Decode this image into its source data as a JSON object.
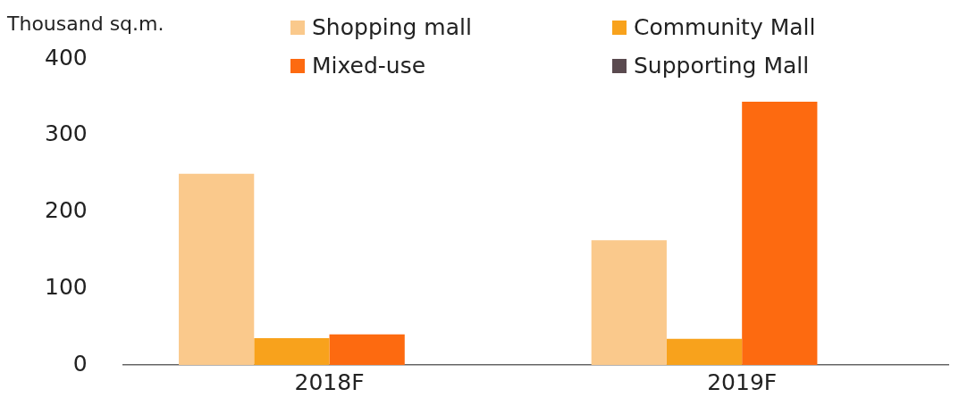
{
  "chart_data": {
    "type": "bar",
    "ylabel": "Thousand sq.m.",
    "categories": [
      "2018F",
      "2019F"
    ],
    "series": [
      {
        "name": "Shopping mall",
        "color": "#fac98c",
        "values": [
          250,
          163
        ]
      },
      {
        "name": "Community Mall",
        "color": "#f8a21c",
        "values": [
          35,
          34
        ]
      },
      {
        "name": "Mixed-use",
        "color": "#fd6a10",
        "values": [
          40,
          344
        ]
      },
      {
        "name": "Supporting Mall",
        "color": "#5a4a4f",
        "values": [
          0,
          0
        ]
      }
    ],
    "ylim": [
      0,
      400
    ],
    "yticks": [
      0,
      100,
      200,
      300,
      400
    ],
    "grid": false,
    "legend": "top"
  }
}
